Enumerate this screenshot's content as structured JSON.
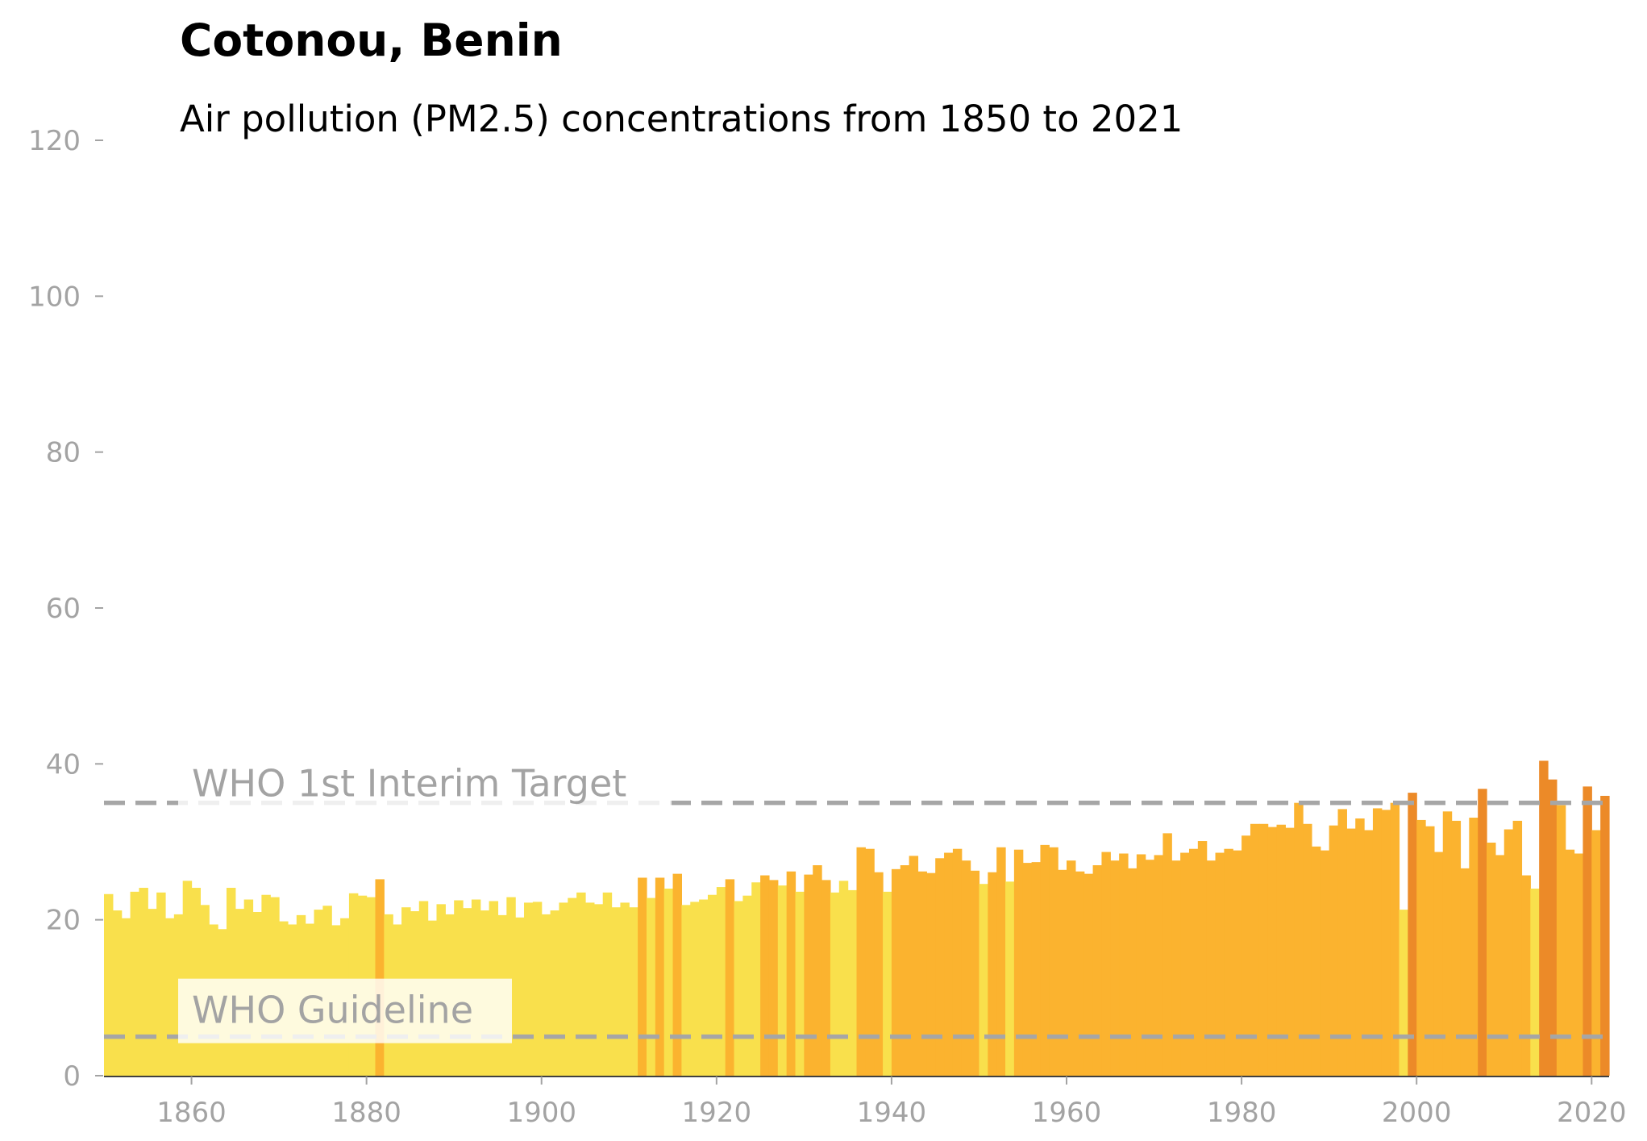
{
  "chart_data": {
    "type": "bar",
    "title": "Cotonou, Benin",
    "subtitle": "Air pollution (PM2.5) concentrations from 1850 to 2021",
    "x_start": 1850,
    "x_end": 2021,
    "xlim": [
      1850,
      2022
    ],
    "ylim": [
      0,
      120
    ],
    "yticks": [
      0,
      20,
      40,
      60,
      80,
      100,
      120
    ],
    "xticks": [
      1860,
      1880,
      1900,
      1920,
      1940,
      1960,
      1980,
      2000,
      2020
    ],
    "grid": false,
    "values": [
      23.3,
      21.2,
      20.2,
      23.6,
      24.1,
      21.4,
      23.5,
      20.2,
      20.7,
      25.0,
      24.1,
      21.9,
      19.4,
      18.8,
      24.1,
      21.4,
      22.6,
      21.0,
      23.2,
      22.9,
      19.8,
      19.4,
      20.6,
      19.5,
      21.3,
      21.8,
      19.3,
      20.2,
      23.4,
      23.1,
      22.9,
      25.2,
      20.7,
      19.4,
      21.6,
      21.1,
      22.4,
      19.9,
      22.0,
      20.7,
      22.5,
      21.5,
      22.6,
      21.2,
      22.4,
      20.6,
      22.9,
      20.3,
      22.2,
      22.3,
      20.7,
      21.2,
      22.2,
      22.8,
      23.5,
      22.2,
      22.0,
      23.5,
      21.6,
      22.2,
      21.6,
      25.4,
      22.8,
      25.4,
      24.0,
      25.9,
      21.9,
      22.3,
      22.6,
      23.2,
      24.2,
      25.2,
      22.4,
      23.1,
      24.8,
      25.7,
      25.1,
      24.4,
      26.2,
      23.6,
      25.8,
      27.0,
      25.1,
      23.5,
      25.0,
      23.8,
      29.3,
      29.1,
      26.1,
      23.6,
      26.5,
      27.0,
      28.2,
      26.2,
      26.0,
      27.9,
      28.6,
      29.1,
      27.6,
      26.3,
      24.6,
      26.1,
      29.3,
      24.9,
      29.0,
      27.3,
      27.4,
      29.6,
      29.3,
      26.4,
      27.6,
      26.2,
      25.9,
      27.0,
      28.7,
      27.6,
      28.5,
      26.6,
      28.4,
      27.7,
      28.3,
      31.1,
      27.6,
      28.6,
      29.1,
      30.1,
      27.6,
      28.6,
      29.1,
      28.9,
      30.8,
      32.3,
      32.3,
      31.9,
      32.2,
      31.8,
      35.0,
      32.3,
      29.4,
      28.9,
      32.1,
      34.2,
      31.7,
      33.0,
      31.5,
      34.3,
      34.1,
      35.0,
      21.3,
      36.3,
      32.8,
      32.0,
      28.7,
      33.9,
      32.7,
      26.6,
      33.1,
      36.8,
      29.9,
      28.3,
      31.6,
      32.7,
      25.7,
      24.0,
      40.4,
      38.0,
      34.7,
      29.0,
      28.5,
      37.1,
      31.5,
      35.9
    ],
    "color_scale": [
      {
        "max": 25,
        "color": "#f9e04c"
      },
      {
        "max": 35,
        "color": "#fbb32f"
      },
      {
        "max": 50,
        "color": "#ec8a28"
      }
    ],
    "reference_lines": [
      {
        "label": "WHO 1st Interim Target",
        "value": 35
      },
      {
        "label": "WHO Guideline",
        "value": 5
      }
    ]
  }
}
